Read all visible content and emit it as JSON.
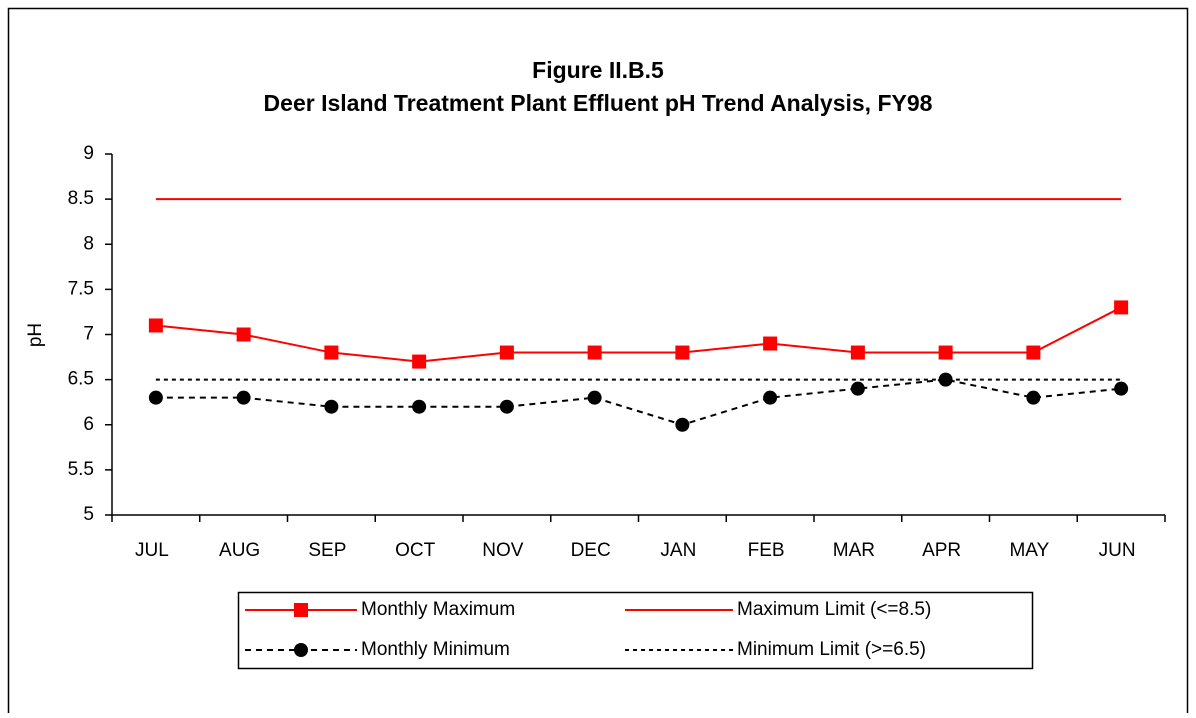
{
  "chart_data": {
    "type": "line",
    "title": "Figure II.B.5",
    "subtitle": "Deer Island Treatment Plant Effluent pH Trend Analysis, FY98",
    "y_label": "pH",
    "categories": [
      "JUL",
      "AUG",
      "SEP",
      "OCT",
      "NOV",
      "DEC",
      "JAN",
      "FEB",
      "MAR",
      "APR",
      "MAY",
      "JUN"
    ],
    "series": [
      {
        "name": "Monthly Maximum",
        "color": "#ff0000",
        "marker": "square",
        "dash": "solid",
        "values": [
          7.1,
          7.0,
          6.8,
          6.7,
          6.8,
          6.8,
          6.8,
          6.9,
          6.8,
          6.8,
          6.8,
          7.3
        ]
      },
      {
        "name": "Maximum Limit (<=8.5)",
        "color": "#ff0000",
        "marker": "none",
        "dash": "solid",
        "values": [
          8.5,
          8.5,
          8.5,
          8.5,
          8.5,
          8.5,
          8.5,
          8.5,
          8.5,
          8.5,
          8.5,
          8.5
        ]
      },
      {
        "name": "Monthly Minimum",
        "color": "#000000",
        "marker": "circle",
        "dash": "dashed",
        "values": [
          6.3,
          6.3,
          6.2,
          6.2,
          6.2,
          6.3,
          6.0,
          6.3,
          6.4,
          6.5,
          6.3,
          6.4
        ]
      },
      {
        "name": "Minimum Limit (>=6.5)",
        "color": "#000000",
        "marker": "none",
        "dash": "dotted",
        "values": [
          6.5,
          6.5,
          6.5,
          6.5,
          6.5,
          6.5,
          6.5,
          6.5,
          6.5,
          6.5,
          6.5,
          6.5
        ]
      }
    ],
    "ylim": [
      5,
      9
    ],
    "yticks": [
      5,
      5.5,
      6,
      6.5,
      7,
      7.5,
      8,
      8.5,
      9
    ],
    "grid": false,
    "legend": "bottom"
  }
}
